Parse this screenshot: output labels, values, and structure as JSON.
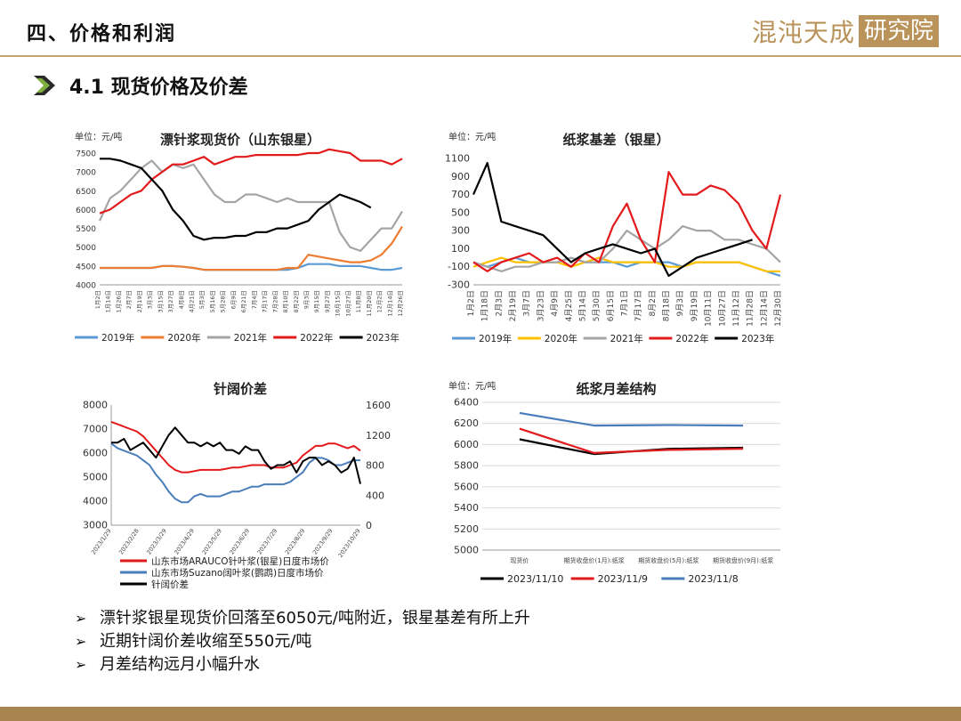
{
  "header": {
    "section_title": "四、价格和利润",
    "brand_left": "混沌天成",
    "brand_right": "研究院"
  },
  "subheader": {
    "title": "4.1 现货价格及价差"
  },
  "colors": {
    "c2019": "#5b9bd5",
    "c2020": "#ed7d31",
    "c2021": "#a5a5a5",
    "c2022": "#e31a1c",
    "c2023": "#000000",
    "c2020b": "#ffc000",
    "gold": "#b9935a"
  },
  "chart_data": [
    {
      "type": "line",
      "title": "漂针浆现货价（山东银星）",
      "unit_label": "单位：元/吨",
      "ylim": [
        4000,
        7500
      ],
      "yticks": [
        "4000",
        "4500",
        "5000",
        "5500",
        "6000",
        "6500",
        "7000",
        "7500"
      ],
      "x_tick_labels": [
        "1月2日",
        "1月14日",
        "1月26日",
        "2月7日",
        "2月19日",
        "3月3日",
        "3月15日",
        "3月27日",
        "4月8日",
        "4月21日",
        "5月3日",
        "5月16日",
        "5月28日",
        "6月9日",
        "6月21日",
        "7月4日",
        "7月17日",
        "7月28日",
        "8月10日",
        "8月22日",
        "9月3日",
        "9月15日",
        "9月27日",
        "10月15日",
        "10月27日",
        "11月8日",
        "11月20日",
        "12月2日",
        "12月14日",
        "12月26日"
      ],
      "x": [
        0,
        1,
        2,
        3,
        4,
        5,
        6,
        7,
        8,
        9,
        10,
        11,
        12,
        13,
        14,
        15,
        16,
        17,
        18,
        19,
        20,
        21,
        22,
        23,
        24,
        25,
        26,
        27,
        28,
        29
      ],
      "series": [
        {
          "name": "2019年",
          "values": [
            4450,
            4450,
            4450,
            4450,
            4450,
            4450,
            4500,
            4500,
            4480,
            4450,
            4400,
            4400,
            4400,
            4400,
            4400,
            4400,
            4400,
            4400,
            4400,
            4450,
            4550,
            4550,
            4550,
            4500,
            4500,
            4500,
            4450,
            4400,
            4400,
            4450
          ]
        },
        {
          "name": "2020年",
          "values": [
            4450,
            4450,
            4450,
            4450,
            4450,
            4450,
            4500,
            4500,
            4480,
            4450,
            4400,
            4400,
            4400,
            4400,
            4400,
            4400,
            4400,
            4400,
            4450,
            4450,
            4800,
            4750,
            4700,
            4650,
            4600,
            4600,
            4650,
            4800,
            5100,
            5550
          ]
        },
        {
          "name": "2021年",
          "values": [
            5700,
            6300,
            6500,
            6800,
            7100,
            7300,
            7000,
            7200,
            7100,
            7200,
            6800,
            6400,
            6200,
            6200,
            6400,
            6400,
            6300,
            6200,
            6300,
            6200,
            6200,
            6200,
            6200,
            5400,
            5000,
            4900,
            5200,
            5500,
            5500,
            5950
          ]
        },
        {
          "name": "2022年",
          "values": [
            5900,
            6000,
            6200,
            6400,
            6500,
            6800,
            7000,
            7200,
            7200,
            7300,
            7400,
            7200,
            7300,
            7400,
            7400,
            7450,
            7450,
            7450,
            7450,
            7450,
            7500,
            7500,
            7600,
            7550,
            7500,
            7300,
            7300,
            7300,
            7200,
            7350
          ]
        },
        {
          "name": "2023年",
          "values": [
            7350,
            7350,
            7300,
            7200,
            7100,
            6800,
            6500,
            6000,
            5700,
            5300,
            5200,
            5250,
            5250,
            5300,
            5300,
            5400,
            5400,
            5500,
            5500,
            5600,
            5700,
            6000,
            6200,
            6400,
            6300,
            6200,
            6050,
            null,
            null,
            null
          ]
        }
      ],
      "legend": [
        "2019年",
        "2020年",
        "2021年",
        "2022年",
        "2023年"
      ],
      "legend_position": "bottom"
    },
    {
      "type": "line",
      "title": "纸浆基差（银星）",
      "unit_label": "单位：元/吨",
      "ylim": [
        -300,
        1100
      ],
      "yticks": [
        "-300",
        "-100",
        "100",
        "300",
        "500",
        "700",
        "900",
        "1100"
      ],
      "x_tick_labels": [
        "1月2日",
        "1月18日",
        "2月3日",
        "2月19日",
        "3月7日",
        "3月23日",
        "4月9日",
        "4月25日",
        "5月14日",
        "5月30日",
        "6月15日",
        "7月1日",
        "7月17日",
        "8月2日",
        "8月18日",
        "9月3日",
        "9月19日",
        "10月11日",
        "10月27日",
        "11月12日",
        "11月28日",
        "12月14日",
        "12月30日"
      ],
      "x": [
        0,
        1,
        2,
        3,
        4,
        5,
        6,
        7,
        8,
        9,
        10,
        11,
        12,
        13,
        14,
        15,
        16,
        17,
        18,
        19,
        20,
        21,
        22
      ],
      "series": [
        {
          "name": "2019年",
          "values": [
            -50,
            -100,
            -50,
            0,
            -50,
            -50,
            -50,
            0,
            -50,
            -50,
            -50,
            -100,
            -50,
            -50,
            -50,
            -100,
            -50,
            -50,
            -50,
            -50,
            -100,
            -150,
            -200
          ]
        },
        {
          "name": "2020年",
          "values": [
            -100,
            -50,
            0,
            -50,
            -50,
            -50,
            -50,
            -100,
            -50,
            0,
            -50,
            -50,
            -50,
            -50,
            -100,
            -100,
            -50,
            -50,
            -50,
            -50,
            -100,
            -150,
            -150
          ]
        },
        {
          "name": "2021年",
          "values": [
            -50,
            -100,
            -150,
            -100,
            -100,
            -50,
            -50,
            0,
            -50,
            -50,
            100,
            300,
            200,
            100,
            200,
            350,
            300,
            300,
            200,
            200,
            150,
            100,
            -50
          ]
        },
        {
          "name": "2022年",
          "values": [
            -50,
            -150,
            -50,
            0,
            50,
            -50,
            0,
            -100,
            50,
            -50,
            350,
            600,
            200,
            -50,
            950,
            700,
            700,
            800,
            750,
            600,
            300,
            100,
            700
          ]
        },
        {
          "name": "2023年",
          "values": [
            700,
            1050,
            400,
            350,
            300,
            250,
            100,
            -50,
            50,
            100,
            150,
            100,
            50,
            100,
            -200,
            -100,
            0,
            50,
            100,
            150,
            200,
            null,
            null
          ]
        }
      ],
      "legend": [
        "2019年",
        "2020年",
        "2021年",
        "2022年",
        "2023年"
      ],
      "legend_position": "bottom"
    },
    {
      "type": "line",
      "title": "针阔价差",
      "ylim": [
        3000,
        8000
      ],
      "yticks": [
        "3000",
        "4000",
        "5000",
        "6000",
        "7000",
        "8000"
      ],
      "y2lim": [
        0,
        1600
      ],
      "y2ticks": [
        "0",
        "400",
        "800",
        "1200",
        "1600"
      ],
      "x_tick_labels": [
        "2023/1/29",
        "2023/2/28",
        "2023/3/29",
        "2023/4/29",
        "2023/5/29",
        "2023/6/29",
        "2023/7/29",
        "2023/8/29",
        "2023/9/29",
        "2023/10/29"
      ],
      "x": [
        0,
        1,
        2,
        3,
        4,
        5,
        6,
        7,
        8,
        9,
        10,
        11,
        12,
        13,
        14,
        15,
        16,
        17,
        18,
        19,
        20,
        21,
        22,
        23,
        24,
        25,
        26,
        27,
        28,
        29,
        30,
        31,
        32,
        33,
        34,
        35,
        36,
        37,
        38,
        39
      ],
      "series": [
        {
          "name": "山东市场ARAUCO针叶浆(银星)日度市场价",
          "axis": "left",
          "values": [
            7300,
            7200,
            7100,
            7000,
            6900,
            6700,
            6400,
            6100,
            5800,
            5500,
            5300,
            5200,
            5200,
            5250,
            5300,
            5300,
            5300,
            5300,
            5350,
            5400,
            5400,
            5450,
            5500,
            5500,
            5500,
            5400,
            5400,
            5400,
            5500,
            5600,
            5900,
            6100,
            6300,
            6300,
            6400,
            6400,
            6300,
            6200,
            6300,
            6100
          ]
        },
        {
          "name": "山东市场Suzano阔叶浆(鹦鹉)日度市场价",
          "axis": "left",
          "values": [
            6400,
            6200,
            6100,
            6000,
            5900,
            5700,
            5500,
            5100,
            4800,
            4400,
            4100,
            3950,
            3950,
            4200,
            4300,
            4200,
            4200,
            4200,
            4300,
            4400,
            4400,
            4500,
            4600,
            4600,
            4700,
            4700,
            4700,
            4700,
            4800,
            5000,
            5200,
            5600,
            5800,
            5800,
            5700,
            5500,
            5500,
            5600,
            5700,
            5700
          ]
        },
        {
          "name": "针阔价差",
          "axis": "right",
          "values": [
            1100,
            1100,
            1150,
            1000,
            1050,
            1100,
            1000,
            900,
            1050,
            1200,
            1300,
            1200,
            1100,
            1100,
            1050,
            1100,
            1050,
            1100,
            1000,
            1000,
            950,
            1050,
            1000,
            1000,
            850,
            750,
            800,
            800,
            850,
            700,
            850,
            900,
            900,
            800,
            850,
            800,
            700,
            750,
            900,
            550
          ]
        }
      ],
      "legend": [
        "山东市场ARAUCO针叶浆(银星)日度市场价",
        "山东市场Suzano阔叶浆(鹦鹉)日度市场价",
        "针阔价差"
      ],
      "legend_position": "bottom"
    },
    {
      "type": "line",
      "title": "纸浆月差结构",
      "unit_label": "单位：元/吨",
      "ylim": [
        5000,
        6400
      ],
      "yticks": [
        "5000",
        "5200",
        "5400",
        "5600",
        "5800",
        "6000",
        "6200",
        "6400"
      ],
      "categories": [
        "现货价",
        "期货收盘价(1月):纸浆",
        "期货收盘价(5月):纸浆",
        "期货收盘价(9月):纸浆"
      ],
      "series": [
        {
          "name": "2023/11/10",
          "values": [
            6050,
            5910,
            5960,
            5970
          ]
        },
        {
          "name": "2023/11/9",
          "values": [
            6150,
            5920,
            5950,
            5960
          ]
        },
        {
          "name": "2023/11/8",
          "values": [
            6300,
            6180,
            6185,
            6180
          ]
        }
      ],
      "legend": [
        "2023/11/10",
        "2023/11/9",
        "2023/11/8"
      ],
      "legend_position": "bottom"
    }
  ],
  "bullets": [
    "漂针浆银星现货价回落至6050元/吨附近，银星基差有所上升",
    "近期针阔价差收缩至550元/吨",
    "月差结构远月小幅升水"
  ],
  "bullet_mark": "➢"
}
